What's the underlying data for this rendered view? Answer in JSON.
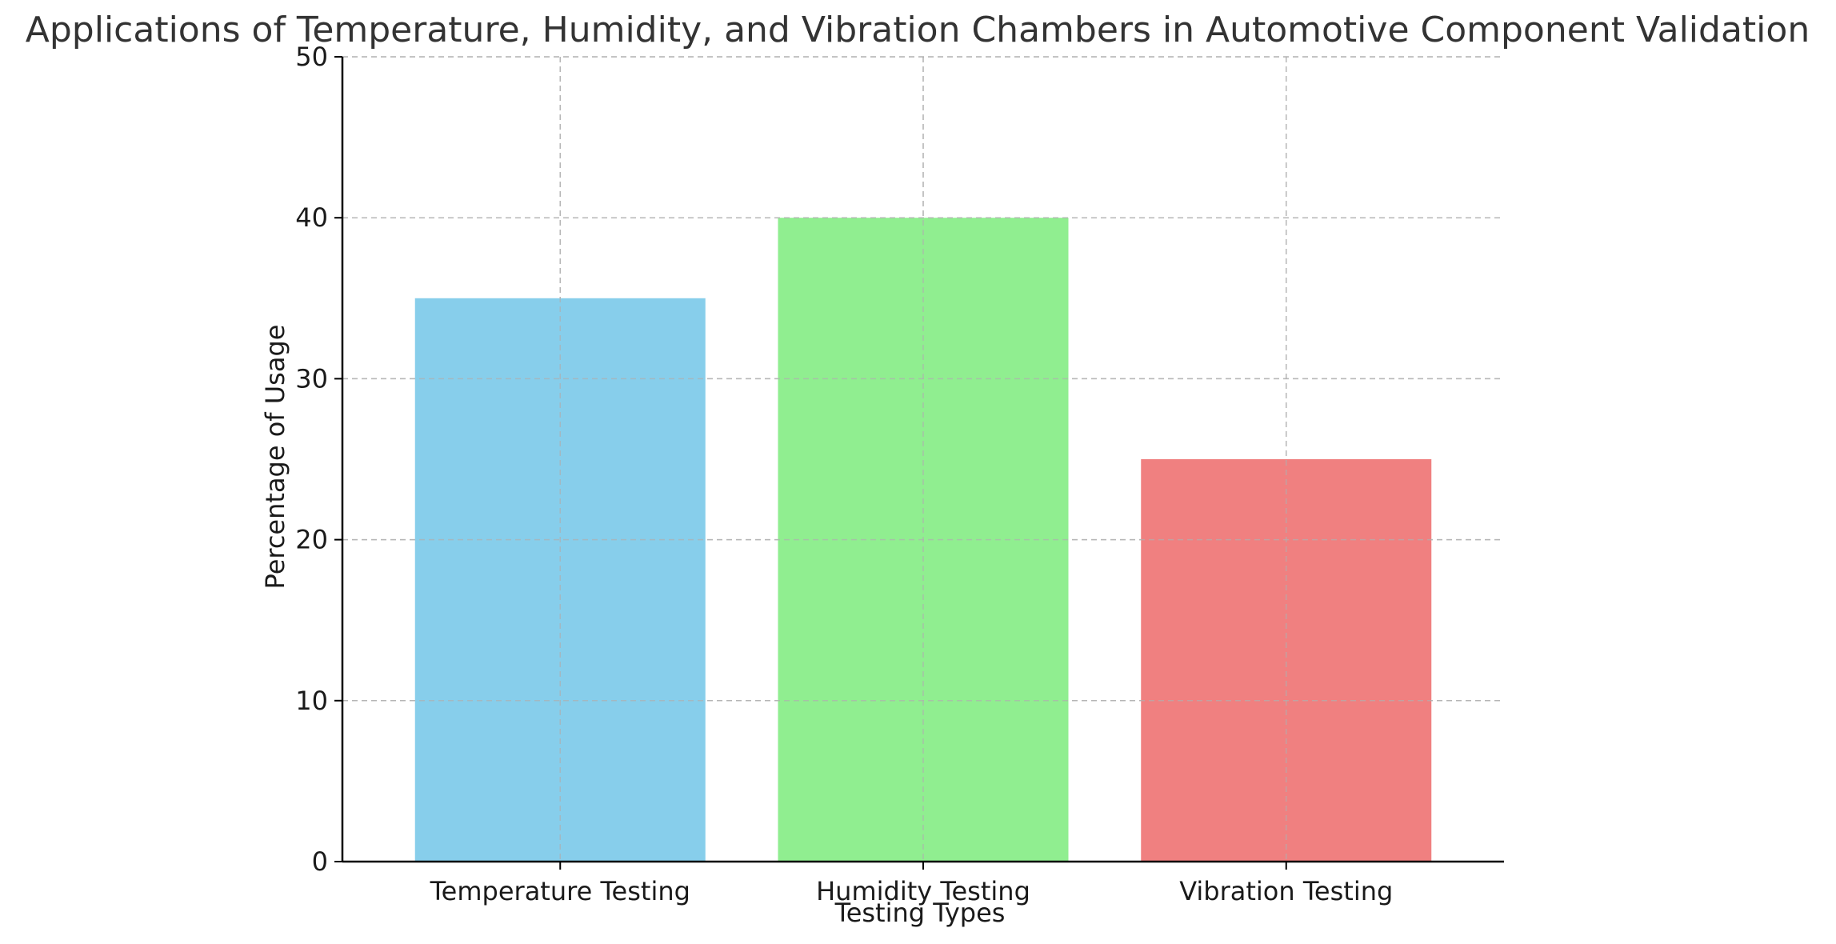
{
  "chart_data": {
    "type": "bar",
    "title": "Applications of Temperature, Humidity, and Vibration Chambers in Automotive Component Validation",
    "xlabel": "Testing Types",
    "ylabel": "Percentage of Usage",
    "categories": [
      "Temperature Testing",
      "Humidity Testing",
      "Vibration Testing"
    ],
    "values": [
      35,
      40,
      25
    ],
    "colors": [
      "#87ceeb",
      "#90ee90",
      "#f08080"
    ],
    "ylim": [
      0,
      50
    ],
    "yticks": [
      0,
      10,
      20,
      30,
      40,
      50
    ],
    "grid": true,
    "legend": "none"
  }
}
